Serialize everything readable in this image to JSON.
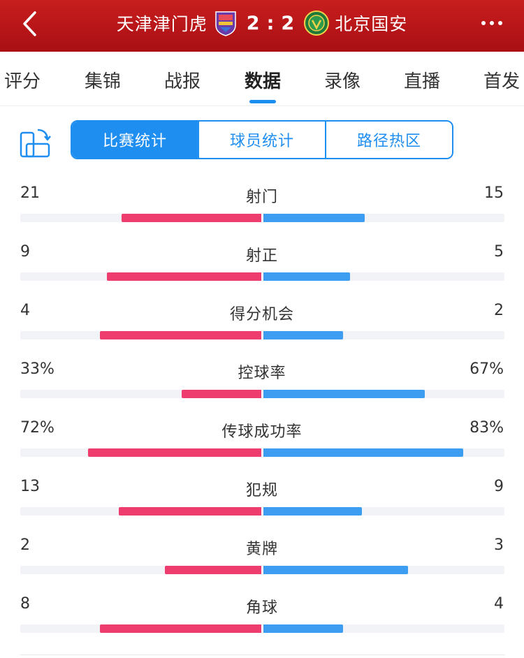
{
  "header": {
    "home_team": "天津津门虎",
    "away_team": "北京国安",
    "home_score": "2",
    "separator": ":",
    "away_score": "2",
    "home_color": "#6a3aa8",
    "away_color": "#1f7a3a"
  },
  "tabs": [
    {
      "label": "评分",
      "active": false
    },
    {
      "label": "集锦",
      "active": false
    },
    {
      "label": "战报",
      "active": false
    },
    {
      "label": "数据",
      "active": true
    },
    {
      "label": "录像",
      "active": false
    },
    {
      "label": "直播",
      "active": false
    },
    {
      "label": "首发",
      "active": false
    }
  ],
  "segments": [
    {
      "label": "比赛统计",
      "active": true
    },
    {
      "label": "球员统计",
      "active": false
    },
    {
      "label": "路径热区",
      "active": false
    }
  ],
  "stats": [
    {
      "label": "射门",
      "home": "21",
      "away": "15",
      "home_ratio": 0.58,
      "away_ratio": 0.42
    },
    {
      "label": "射正",
      "home": "9",
      "away": "5",
      "home_ratio": 0.64,
      "away_ratio": 0.36
    },
    {
      "label": "得分机会",
      "home": "4",
      "away": "2",
      "home_ratio": 0.67,
      "away_ratio": 0.33
    },
    {
      "label": "控球率",
      "home": "33%",
      "away": "67%",
      "home_ratio": 0.33,
      "away_ratio": 0.67
    },
    {
      "label": "传球成功率",
      "home": "72%",
      "away": "83%",
      "home_ratio": 0.72,
      "away_ratio": 0.83
    },
    {
      "label": "犯规",
      "home": "13",
      "away": "9",
      "home_ratio": 0.59,
      "away_ratio": 0.41
    },
    {
      "label": "黄牌",
      "home": "2",
      "away": "3",
      "home_ratio": 0.4,
      "away_ratio": 0.6
    },
    {
      "label": "角球",
      "home": "8",
      "away": "4",
      "home_ratio": 0.67,
      "away_ratio": 0.33
    }
  ],
  "colors": {
    "header": "#b8151a",
    "accent": "#1f8ef1",
    "home_bar": "#ee3c6f",
    "away_bar": "#3d9df0"
  }
}
